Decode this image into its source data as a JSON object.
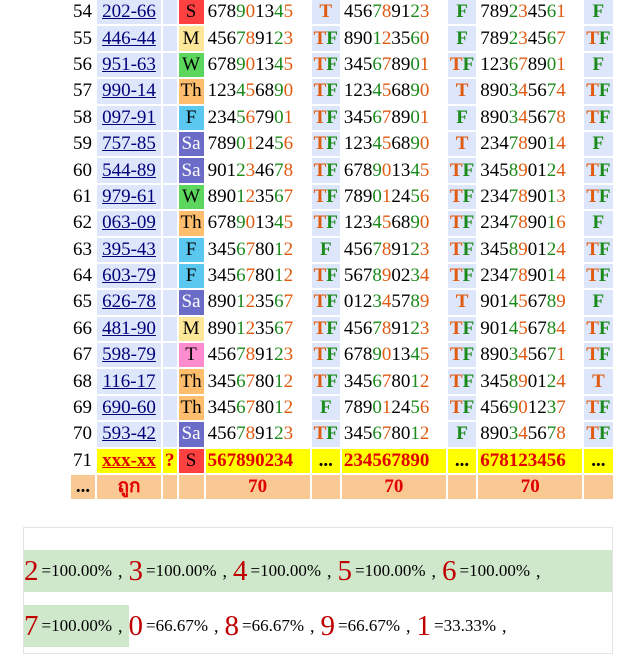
{
  "colors": {
    "green": "#1a8a1a",
    "orange": "#e05a10",
    "red": "#d80000",
    "blue_bg": "#dde6fb",
    "yellow": "#ffff00",
    "footer": "#fac993"
  },
  "rows": [
    {
      "n": "54",
      "code": "202-66",
      "day": "S",
      "day_bg": "#ff4040",
      "d1": "678901345",
      "t1": "T",
      "d2": "456789123",
      "t2": "F",
      "d3": "789234561",
      "t3": "F"
    },
    {
      "n": "55",
      "code": "446-44",
      "day": "M",
      "day_bg": "#ffe79a",
      "d1": "456789123",
      "t1": "TF",
      "d2": "890123560",
      "t2": "F",
      "d3": "789234567",
      "t3": "TF"
    },
    {
      "n": "56",
      "code": "951-63",
      "day": "W",
      "day_bg": "#5cd65c",
      "d1": "678901345",
      "t1": "TF",
      "d2": "345678901",
      "t2": "TF",
      "d3": "123678901",
      "t3": "F"
    },
    {
      "n": "57",
      "code": "990-14",
      "day": "Th",
      "day_bg": "#ffbe6e",
      "d1": "123456890",
      "t1": "TF",
      "d2": "123456890",
      "t2": "T",
      "d3": "890345674",
      "t3": "TF"
    },
    {
      "n": "58",
      "code": "097-91",
      "day": "F",
      "day_bg": "#5bc8f0",
      "d1": "234567901",
      "t1": "TF",
      "d2": "345678901",
      "t2": "F",
      "d3": "890345678",
      "t3": "TF"
    },
    {
      "n": "59",
      "code": "757-85",
      "day": "Sa",
      "day_bg": "#6b6bc8",
      "d1": "789012456",
      "t1": "TF",
      "d2": "123456890",
      "t2": "T",
      "d3": "234789014",
      "t3": "F"
    },
    {
      "n": "60",
      "code": "544-89",
      "day": "Sa",
      "day_bg": "#6b6bc8",
      "d1": "901234678",
      "t1": "TF",
      "d2": "678901345",
      "t2": "TF",
      "d3": "345890124",
      "t3": "TF"
    },
    {
      "n": "61",
      "code": "979-61",
      "day": "W",
      "day_bg": "#5cd65c",
      "d1": "890123567",
      "t1": "TF",
      "d2": "789012456",
      "t2": "TF",
      "d3": "234789013",
      "t3": "TF"
    },
    {
      "n": "62",
      "code": "063-09",
      "day": "Th",
      "day_bg": "#ffbe6e",
      "d1": "678901345",
      "t1": "TF",
      "d2": "123456890",
      "t2": "TF",
      "d3": "234789016",
      "t3": "F"
    },
    {
      "n": "63",
      "code": "395-43",
      "day": "F",
      "day_bg": "#5bc8f0",
      "d1": "345678012",
      "t1": "F",
      "d2": "456789123",
      "t2": "TF",
      "d3": "345890124",
      "t3": "TF"
    },
    {
      "n": "64",
      "code": "603-79",
      "day": "F",
      "day_bg": "#5bc8f0",
      "d1": "345678012",
      "t1": "TF",
      "d2": "567890234",
      "t2": "TF",
      "d3": "234789014",
      "t3": "TF"
    },
    {
      "n": "65",
      "code": "626-78",
      "day": "Sa",
      "day_bg": "#6b6bc8",
      "d1": "890123567",
      "t1": "TF",
      "d2": "012345789",
      "t2": "T",
      "d3": "901456789",
      "t3": "F"
    },
    {
      "n": "66",
      "code": "481-90",
      "day": "M",
      "day_bg": "#ffe79a",
      "d1": "890123567",
      "t1": "TF",
      "d2": "456789123",
      "t2": "TF",
      "d3": "901456784",
      "t3": "TF"
    },
    {
      "n": "67",
      "code": "598-79",
      "day": "T",
      "day_bg": "#ff8ccf",
      "d1": "456789123",
      "t1": "TF",
      "d2": "678901345",
      "t2": "TF",
      "d3": "890345671",
      "t3": "TF"
    },
    {
      "n": "68",
      "code": "116-17",
      "day": "Th",
      "day_bg": "#ffbe6e",
      "d1": "345678012",
      "t1": "TF",
      "d2": "345678012",
      "t2": "TF",
      "d3": "345890124",
      "t3": "T"
    },
    {
      "n": "69",
      "code": "690-60",
      "day": "Th",
      "day_bg": "#ffbe6e",
      "d1": "345678012",
      "t1": "F",
      "d2": "789012456",
      "t2": "TF",
      "d3": "456901237",
      "t3": "TF"
    },
    {
      "n": "70",
      "code": "593-42",
      "day": "Sa",
      "day_bg": "#6b6bc8",
      "d1": "456789123",
      "t1": "TF",
      "d2": "345678012",
      "t2": "F",
      "d3": "890345678",
      "t3": "TF"
    }
  ],
  "last_row": {
    "n": "71",
    "code": "xxx-xx",
    "q": "?",
    "day": "S",
    "d1": "567890234",
    "e1": "...",
    "d2": "234567890",
    "e2": "...",
    "d3": "678123456",
    "e3": "..."
  },
  "footer": {
    "dots": "...",
    "word": "ถูก",
    "c1": "70",
    "c2": "70",
    "c3": "70"
  },
  "stats_line1": [
    {
      "digit": "2",
      "pct": "=100.00%"
    },
    {
      "digit": "3",
      "pct": "=100.00%"
    },
    {
      "digit": "4",
      "pct": "=100.00%"
    },
    {
      "digit": "5",
      "pct": "=100.00%"
    },
    {
      "digit": "6",
      "pct": "=100.00%"
    }
  ],
  "stats_line2_hl": {
    "digit": "7",
    "pct": "=100.00%"
  },
  "stats_line2": [
    {
      "digit": "0",
      "pct": "=66.67%"
    },
    {
      "digit": "8",
      "pct": "=66.67%"
    },
    {
      "digit": "9",
      "pct": "=66.67%"
    },
    {
      "digit": "1",
      "pct": "=33.33%"
    }
  ],
  "sep": ","
}
